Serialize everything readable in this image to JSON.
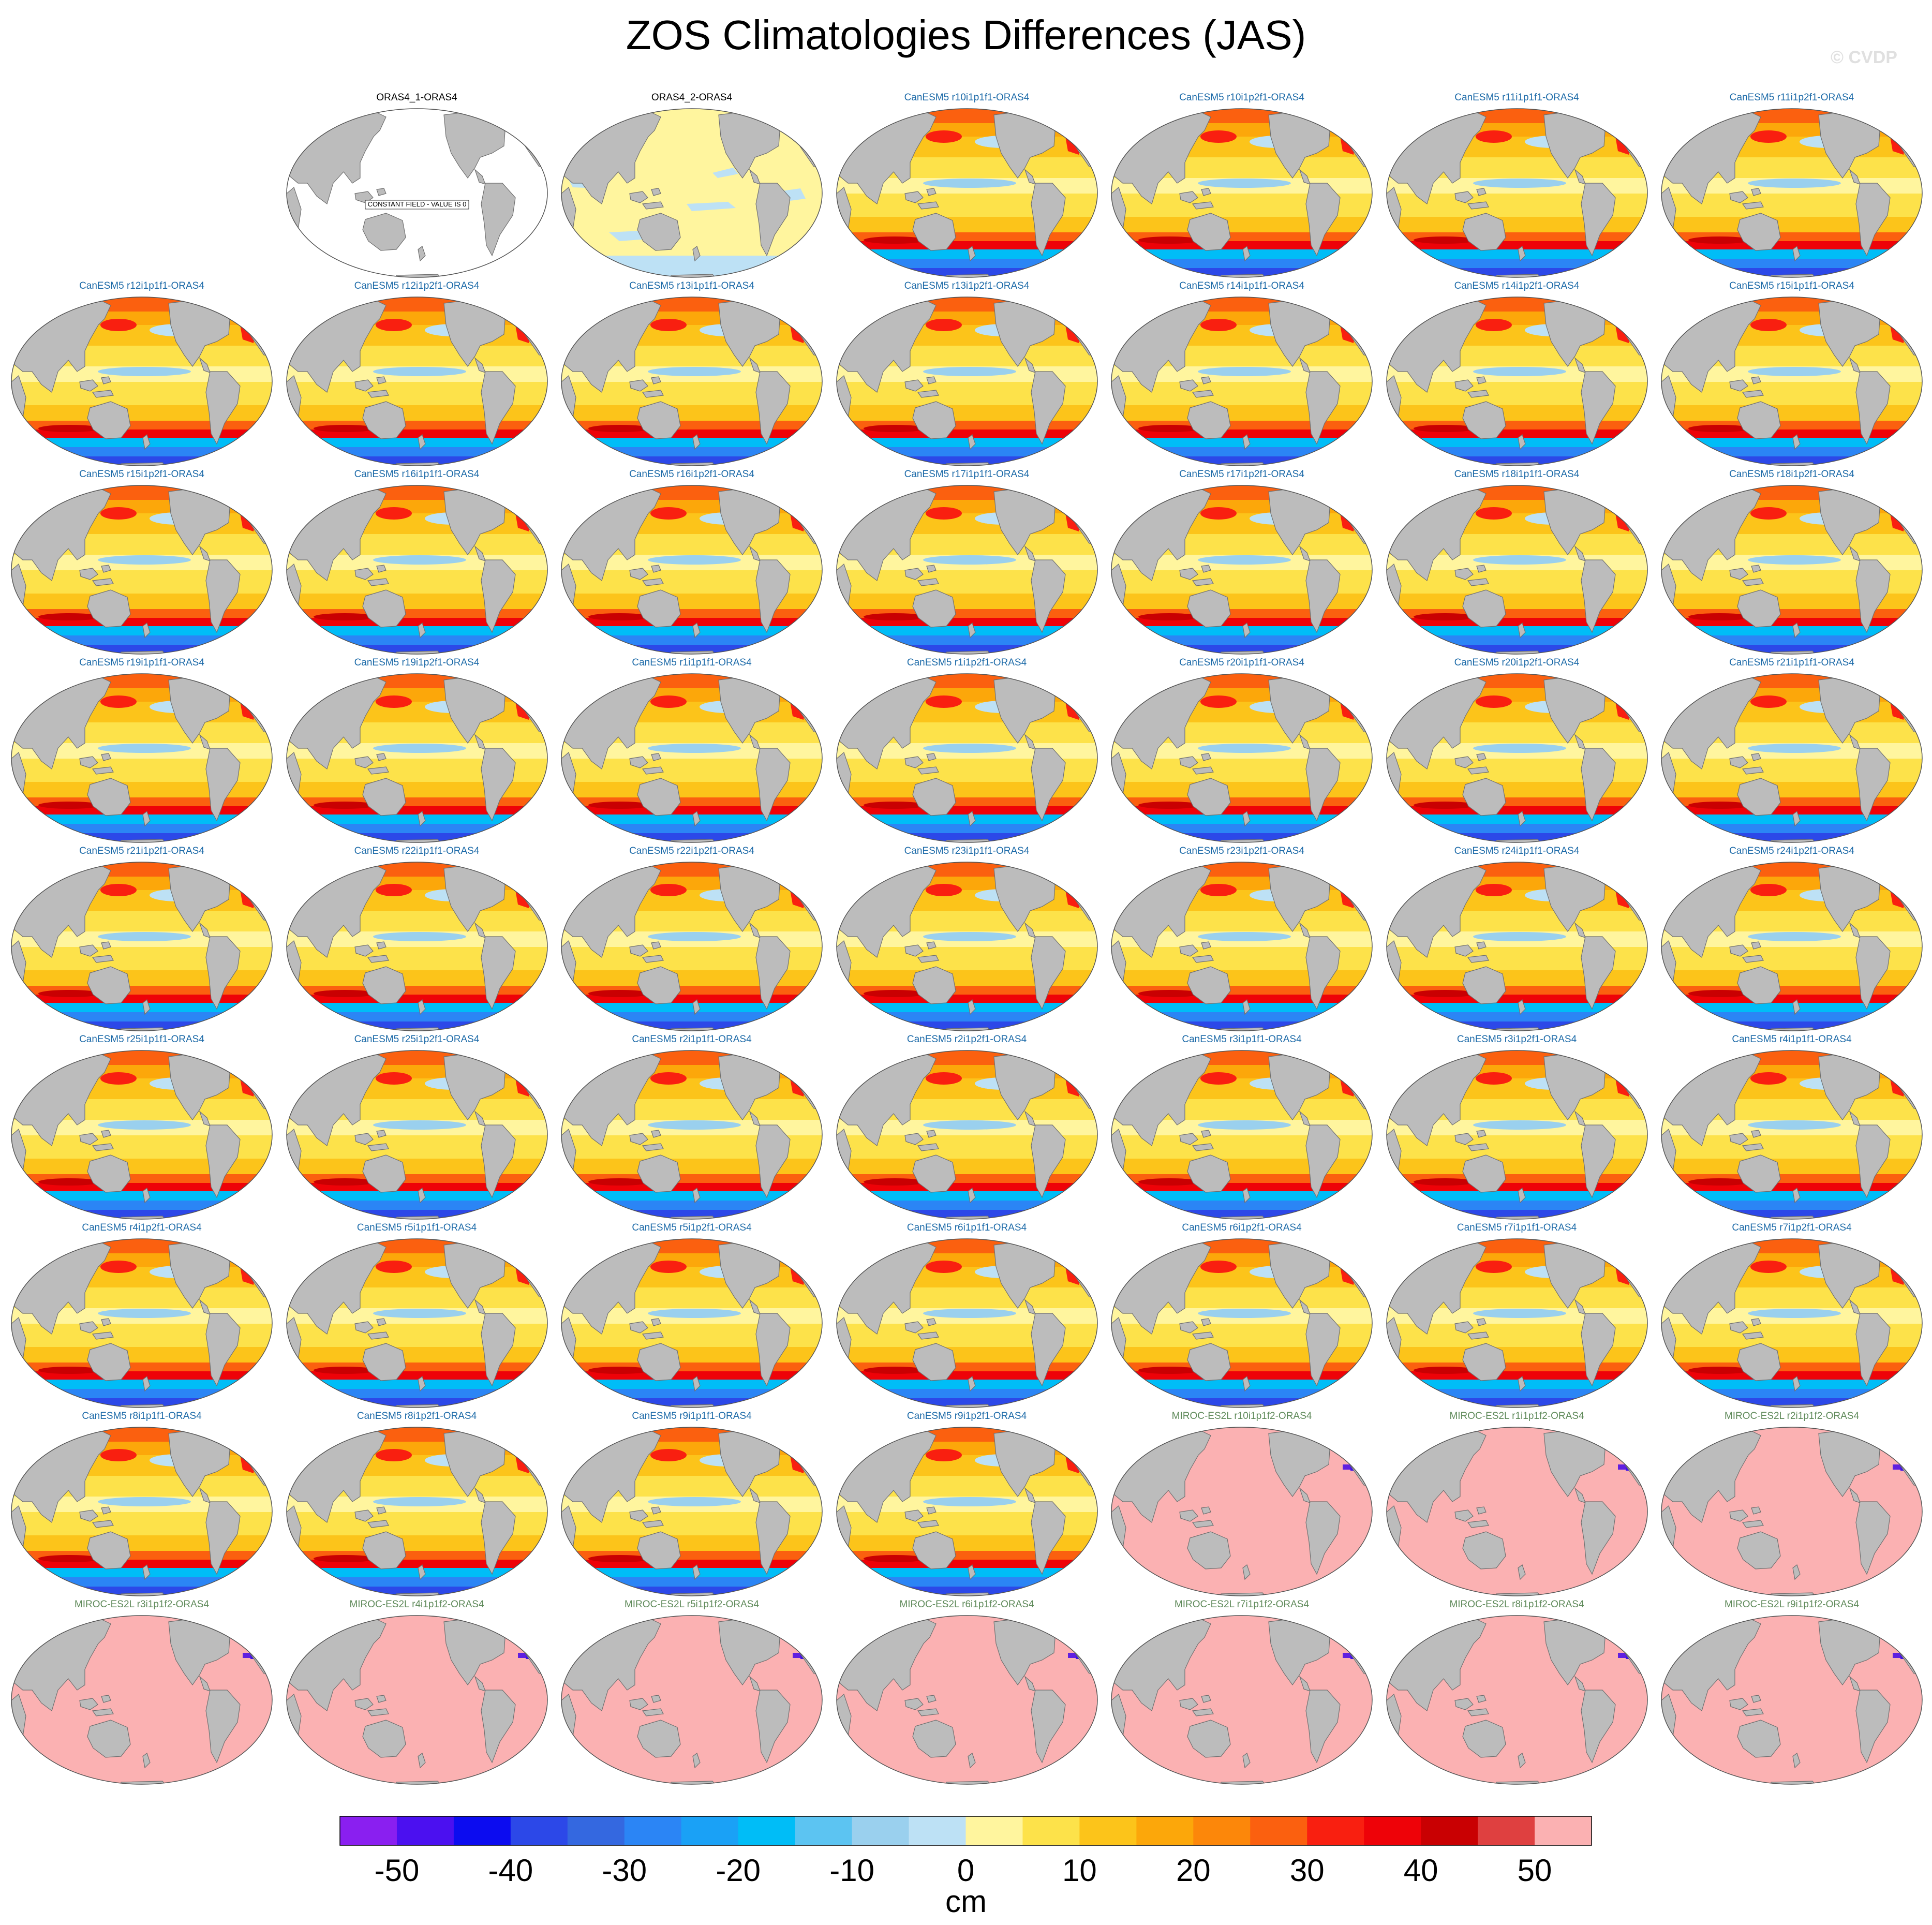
{
  "title": "ZOS Climatologies Differences (JAS)",
  "watermark": "© CVDP",
  "colors": {
    "land": "#bcbcbc",
    "coast": "#707070",
    "canesm_label": "#1c6aa8",
    "miroc_label": "#5f8a5a",
    "oras_label": "#000000",
    "miroc_field": "#fbb1b2"
  },
  "constant_field_note": "CONSTANT FIELD - VALUE IS 0",
  "panels": [
    "ORAS4_1-ORAS4",
    "ORAS4_2-ORAS4",
    "CanESM5 r10i1p1f1-ORAS4",
    "CanESM5 r10i1p2f1-ORAS4",
    "CanESM5 r11i1p1f1-ORAS4",
    "CanESM5 r11i1p2f1-ORAS4",
    "CanESM5 r12i1p1f1-ORAS4",
    "CanESM5 r12i1p2f1-ORAS4",
    "CanESM5 r13i1p1f1-ORAS4",
    "CanESM5 r13i1p2f1-ORAS4",
    "CanESM5 r14i1p1f1-ORAS4",
    "CanESM5 r14i1p2f1-ORAS4",
    "CanESM5 r15i1p1f1-ORAS4",
    "CanESM5 r15i1p2f1-ORAS4",
    "CanESM5 r16i1p1f1-ORAS4",
    "CanESM5 r16i1p2f1-ORAS4",
    "CanESM5 r17i1p1f1-ORAS4",
    "CanESM5 r17i1p2f1-ORAS4",
    "CanESM5 r18i1p1f1-ORAS4",
    "CanESM5 r18i1p2f1-ORAS4",
    "CanESM5 r19i1p1f1-ORAS4",
    "CanESM5 r19i1p2f1-ORAS4",
    "CanESM5 r1i1p1f1-ORAS4",
    "CanESM5 r1i1p2f1-ORAS4",
    "CanESM5 r20i1p1f1-ORAS4",
    "CanESM5 r20i1p2f1-ORAS4",
    "CanESM5 r21i1p1f1-ORAS4",
    "CanESM5 r21i1p2f1-ORAS4",
    "CanESM5 r22i1p1f1-ORAS4",
    "CanESM5 r22i1p2f1-ORAS4",
    "CanESM5 r23i1p1f1-ORAS4",
    "CanESM5 r23i1p2f1-ORAS4",
    "CanESM5 r24i1p1f1-ORAS4",
    "CanESM5 r24i1p2f1-ORAS4",
    "CanESM5 r25i1p1f1-ORAS4",
    "CanESM5 r25i1p2f1-ORAS4",
    "CanESM5 r2i1p1f1-ORAS4",
    "CanESM5 r2i1p2f1-ORAS4",
    "CanESM5 r3i1p1f1-ORAS4",
    "CanESM5 r3i1p2f1-ORAS4",
    "CanESM5 r4i1p1f1-ORAS4",
    "CanESM5 r4i1p2f1-ORAS4",
    "CanESM5 r5i1p1f1-ORAS4",
    "CanESM5 r5i1p2f1-ORAS4",
    "CanESM5 r6i1p1f1-ORAS4",
    "CanESM5 r6i1p2f1-ORAS4",
    "CanESM5 r7i1p1f1-ORAS4",
    "CanESM5 r7i1p2f1-ORAS4",
    "CanESM5 r8i1p1f1-ORAS4",
    "CanESM5 r8i1p2f1-ORAS4",
    "CanESM5 r9i1p1f1-ORAS4",
    "CanESM5 r9i1p2f1-ORAS4",
    "MIROC-ES2L r10i1p1f2-ORAS4",
    "MIROC-ES2L r1i1p1f2-ORAS4",
    "MIROC-ES2L r2i1p1f2-ORAS4",
    "MIROC-ES2L r3i1p1f2-ORAS4",
    "MIROC-ES2L r4i1p1f2-ORAS4",
    "MIROC-ES2L r5i1p1f2-ORAS4",
    "MIROC-ES2L r6i1p1f2-ORAS4",
    "MIROC-ES2L r7i1p1f2-ORAS4",
    "MIROC-ES2L r8i1p1f2-ORAS4",
    "MIROC-ES2L r9i1p1f2-ORAS4"
  ],
  "colorbar": {
    "unit": "cm",
    "labels": [
      "-50",
      "-40",
      "-30",
      "-20",
      "-10",
      "0",
      "10",
      "20",
      "30",
      "40",
      "50"
    ],
    "colors": [
      "#8a1ff0",
      "#4b10f0",
      "#0c0cf0",
      "#2c48e8",
      "#3468e0",
      "#2b85f5",
      "#1aa1f6",
      "#00bdf7",
      "#5cc4f2",
      "#9ad0ee",
      "#bde1f5",
      "#fff59e",
      "#fde24a",
      "#fcc41a",
      "#fca70a",
      "#fc870a",
      "#fb600f",
      "#f91f10",
      "#ee0208",
      "#c90002",
      "#df4040",
      "#fbb1b2"
    ]
  }
}
